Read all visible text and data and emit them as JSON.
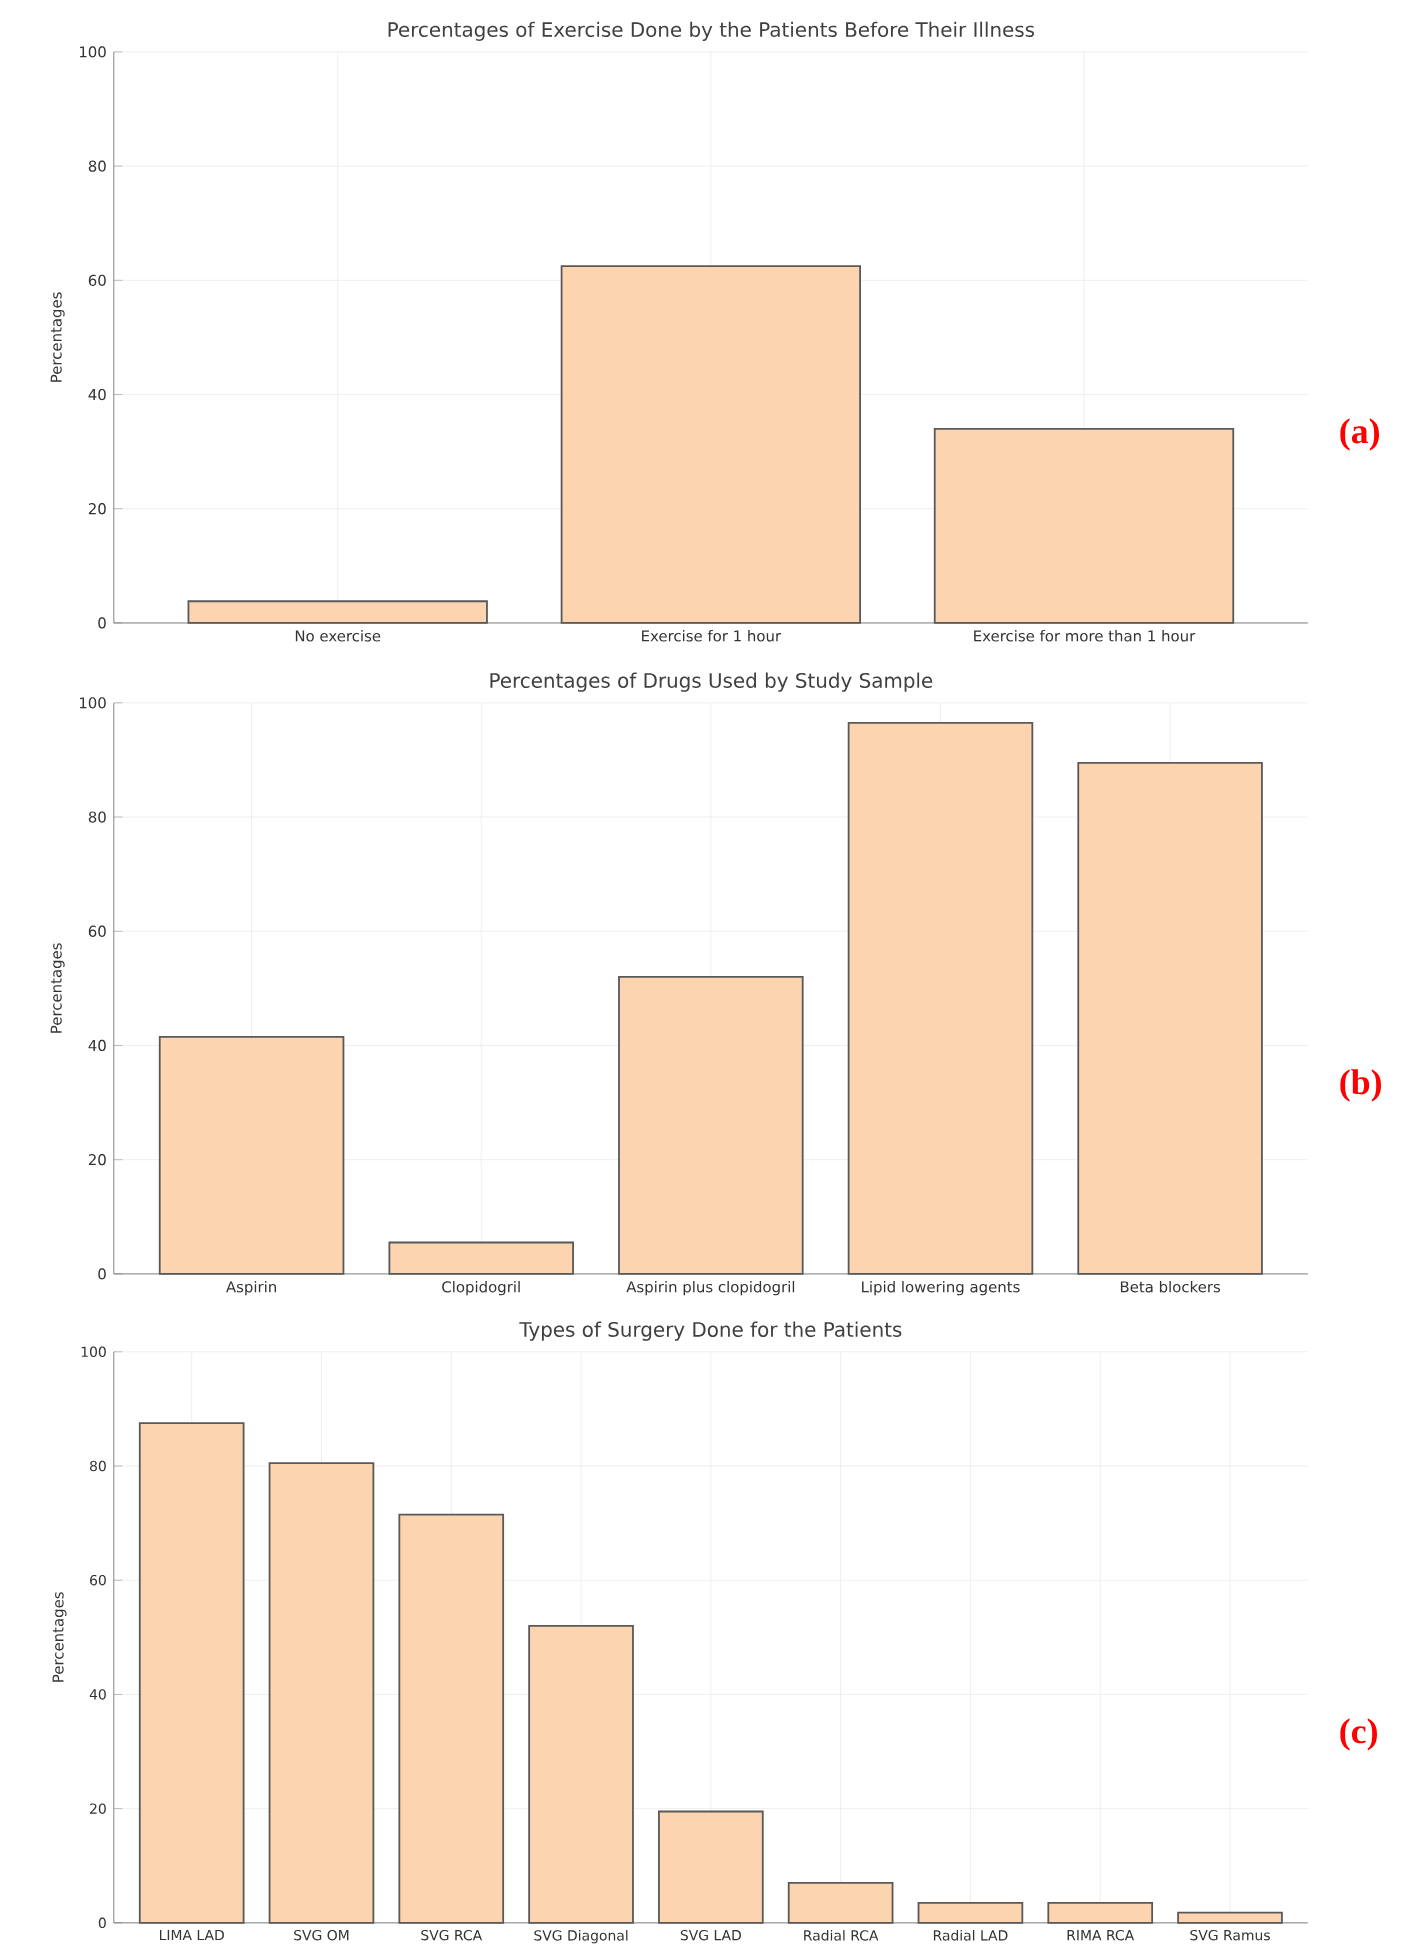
{
  "chart_data": [
    {
      "type": "bar",
      "title": "Percentages of Exercise Done by the Patients Before Their Illness",
      "ylabel": "Percentages",
      "categories": [
        "No exercise",
        "Exercise for 1 hour",
        "Exercise for more than 1 hour"
      ],
      "values": [
        3.8,
        62.5,
        34
      ],
      "color": "#fcd5b0",
      "ylim": [
        0,
        100
      ],
      "yticks": [
        0,
        20,
        40,
        60,
        80,
        100
      ],
      "grid": true,
      "annotations": [
        "(a)"
      ]
    },
    {
      "type": "bar",
      "title": "Percentages of Drugs Used by Study Sample",
      "ylabel": "Percentages",
      "categories": [
        "Aspirin",
        "Clopidogril",
        "Aspirin plus clopidogril",
        "Lipid lowering agents",
        "Beta blockers"
      ],
      "values": [
        41.5,
        5.5,
        52,
        96.5,
        89.5
      ],
      "color": "#fcd5b0",
      "ylim": [
        0,
        100
      ],
      "yticks": [
        0,
        20,
        40,
        60,
        80,
        100
      ],
      "grid": true,
      "annotations": [
        "(b)"
      ]
    },
    {
      "type": "bar",
      "title": "Types of Surgery Done for the Patients",
      "ylabel": "Percentages",
      "categories": [
        "LIMA LAD",
        "SVG OM",
        "SVG RCA",
        "SVG Diagonal",
        "SVG LAD",
        "Radial RCA",
        "Radial LAD",
        "RIMA RCA",
        "SVG Ramus"
      ],
      "values": [
        87.5,
        80.5,
        71.5,
        52,
        19.5,
        7,
        3.5,
        3.5,
        1.8
      ],
      "color": "#fcd5b0",
      "ylim": [
        0,
        100
      ],
      "yticks": [
        0,
        20,
        40,
        60,
        80,
        100
      ],
      "grid": true,
      "annotations": [
        "(c)"
      ]
    }
  ]
}
